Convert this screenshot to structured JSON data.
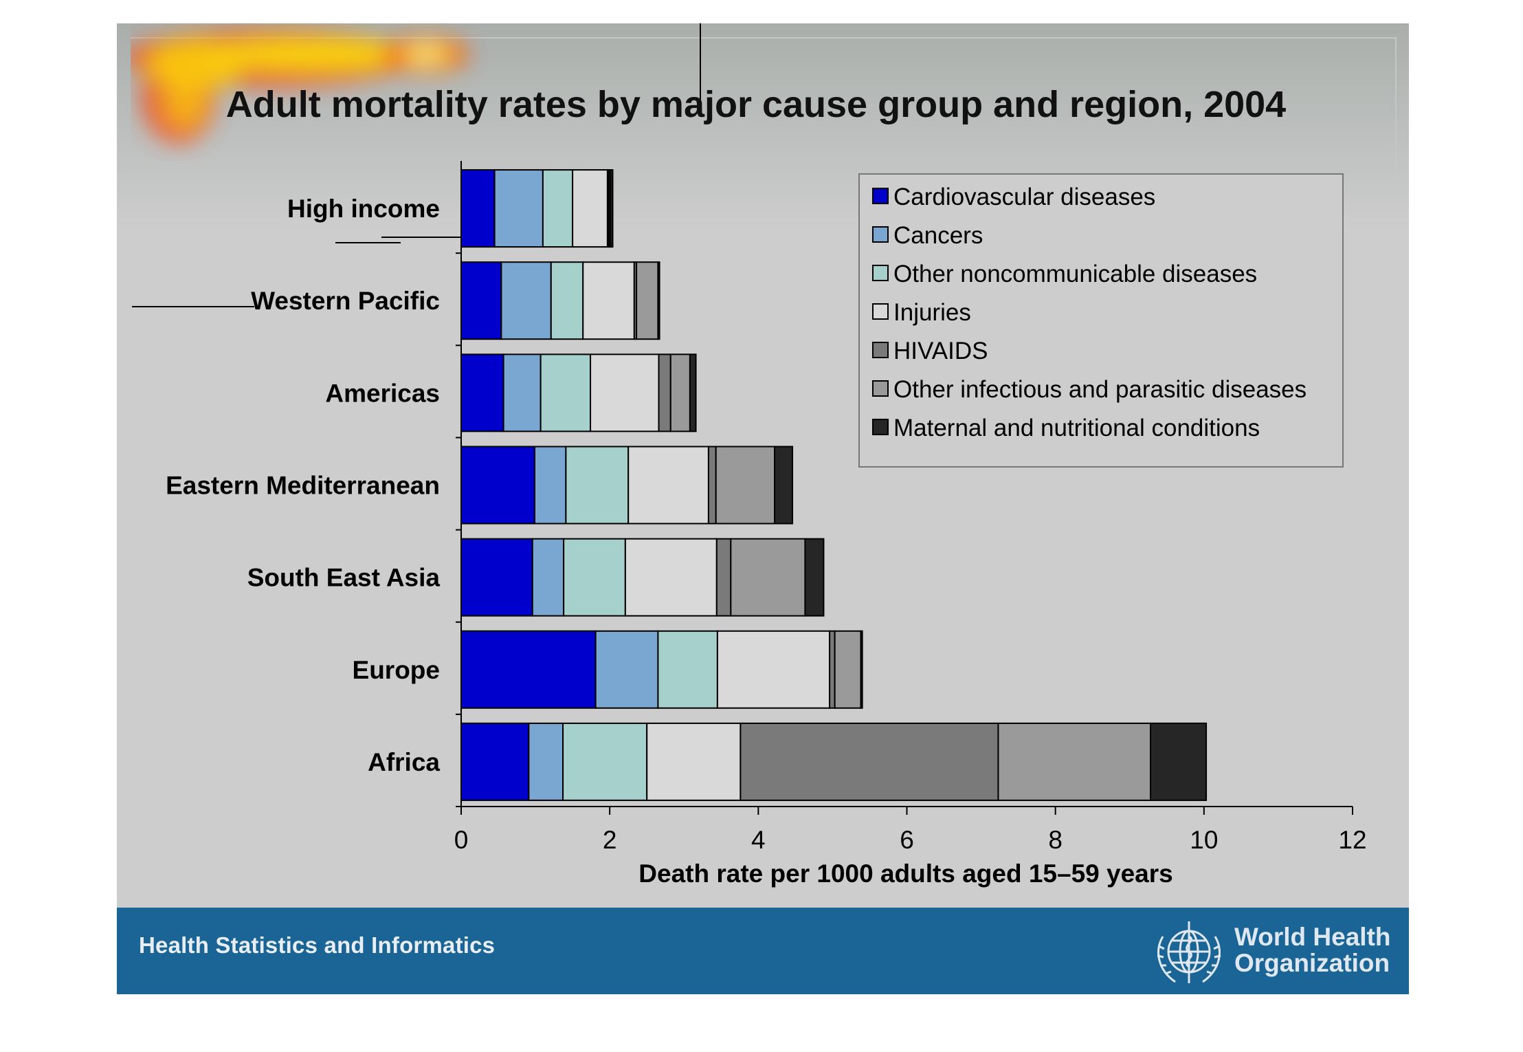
{
  "chart_data": {
    "type": "bar",
    "orientation": "horizontal",
    "stacked": true,
    "title": "Adult mortality rates by major cause group and region, 2004",
    "xlabel": "Death rate per 1000 adults aged 15–59 years",
    "ylabel": "",
    "xlim": [
      0,
      12
    ],
    "xticks": [
      "0",
      "2",
      "4",
      "6",
      "8",
      "10",
      "12"
    ],
    "grid": false,
    "legend_position": "top-right",
    "categories": [
      "High income",
      "Western Pacific",
      "Americas",
      "Eastern Mediterranean",
      "South East Asia",
      "Europe",
      "Africa"
    ],
    "series": [
      {
        "name": "Cardiovascular diseases",
        "color": "#0000cc",
        "values": [
          0.45,
          0.54,
          0.57,
          0.99,
          0.96,
          1.81,
          0.91
        ]
      },
      {
        "name": "Cancers",
        "color": "#7aa6d2",
        "values": [
          0.65,
          0.67,
          0.5,
          0.42,
          0.42,
          0.84,
          0.46
        ]
      },
      {
        "name": "Other noncommunicable diseases",
        "color": "#a6d0cc",
        "values": [
          0.4,
          0.43,
          0.67,
          0.84,
          0.83,
          0.8,
          1.13
        ]
      },
      {
        "name": "Injuries",
        "color": "#d9d9d9",
        "values": [
          0.47,
          0.69,
          0.92,
          1.08,
          1.23,
          1.51,
          1.26
        ]
      },
      {
        "name": "HIVAIDS",
        "color": "#7a7a7a",
        "values": [
          0.02,
          0.03,
          0.16,
          0.1,
          0.19,
          0.07,
          3.47
        ]
      },
      {
        "name": "Other infectious and parasitic diseases",
        "color": "#9a9a9a",
        "values": [
          0.02,
          0.29,
          0.26,
          0.79,
          1.0,
          0.35,
          2.05
        ]
      },
      {
        "name": "Maternal and nutritional conditions",
        "color": "#262626",
        "values": [
          0.03,
          0.02,
          0.08,
          0.24,
          0.25,
          0.02,
          0.75
        ]
      }
    ]
  },
  "footer": {
    "left_text": "Health Statistics and Informatics",
    "logo_line1": "World Health",
    "logo_line2": "Organization"
  }
}
